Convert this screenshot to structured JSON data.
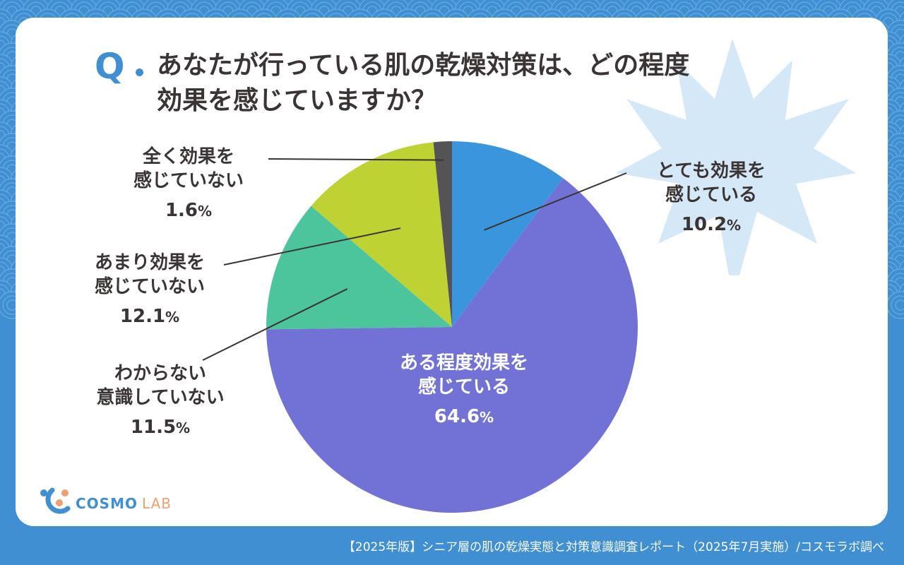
{
  "question": {
    "mark": "Q",
    "line1": "あなたが行っている肌の乾燥対策は、どの程度",
    "line2": "効果を感じていますか？"
  },
  "labels": [
    {
      "l1": "とても効果を",
      "l2": "感じている",
      "num": "10.2",
      "unit": "%"
    },
    {
      "l1": "ある程度効果を",
      "l2": "感じている",
      "num": "64.6",
      "unit": "%"
    },
    {
      "l1": "わからない",
      "l2": "意識していない",
      "num": "11.5",
      "unit": "%"
    },
    {
      "l1": "あまり効果を",
      "l2": "感じていない",
      "num": "12.1",
      "unit": "%"
    },
    {
      "l1": "全く効果を",
      "l2": "感じていない",
      "num": "1.6",
      "unit": "%"
    }
  ],
  "chart_data": {
    "type": "pie",
    "categories": [
      "とても効果を感じている",
      "ある程度効果を感じている",
      "わからない 意識していない",
      "あまり効果を感じていない",
      "全く効果を感じていない"
    ],
    "values": [
      10.2,
      64.6,
      11.5,
      12.1,
      1.6
    ],
    "colors": [
      "#3b95dc",
      "#7272d6",
      "#4cc59d",
      "#bfd233",
      "#545456"
    ],
    "title": "あなたが行っている肌の乾燥対策は、どの程度効果を感じていますか？"
  },
  "logo": {
    "name": "COSMO",
    "suffix": "LAB"
  },
  "footer": "【2025年版】シニア層の肌の乾燥実態と対策意識調査レポート（2025年7月実施）/コスモラボ調べ"
}
